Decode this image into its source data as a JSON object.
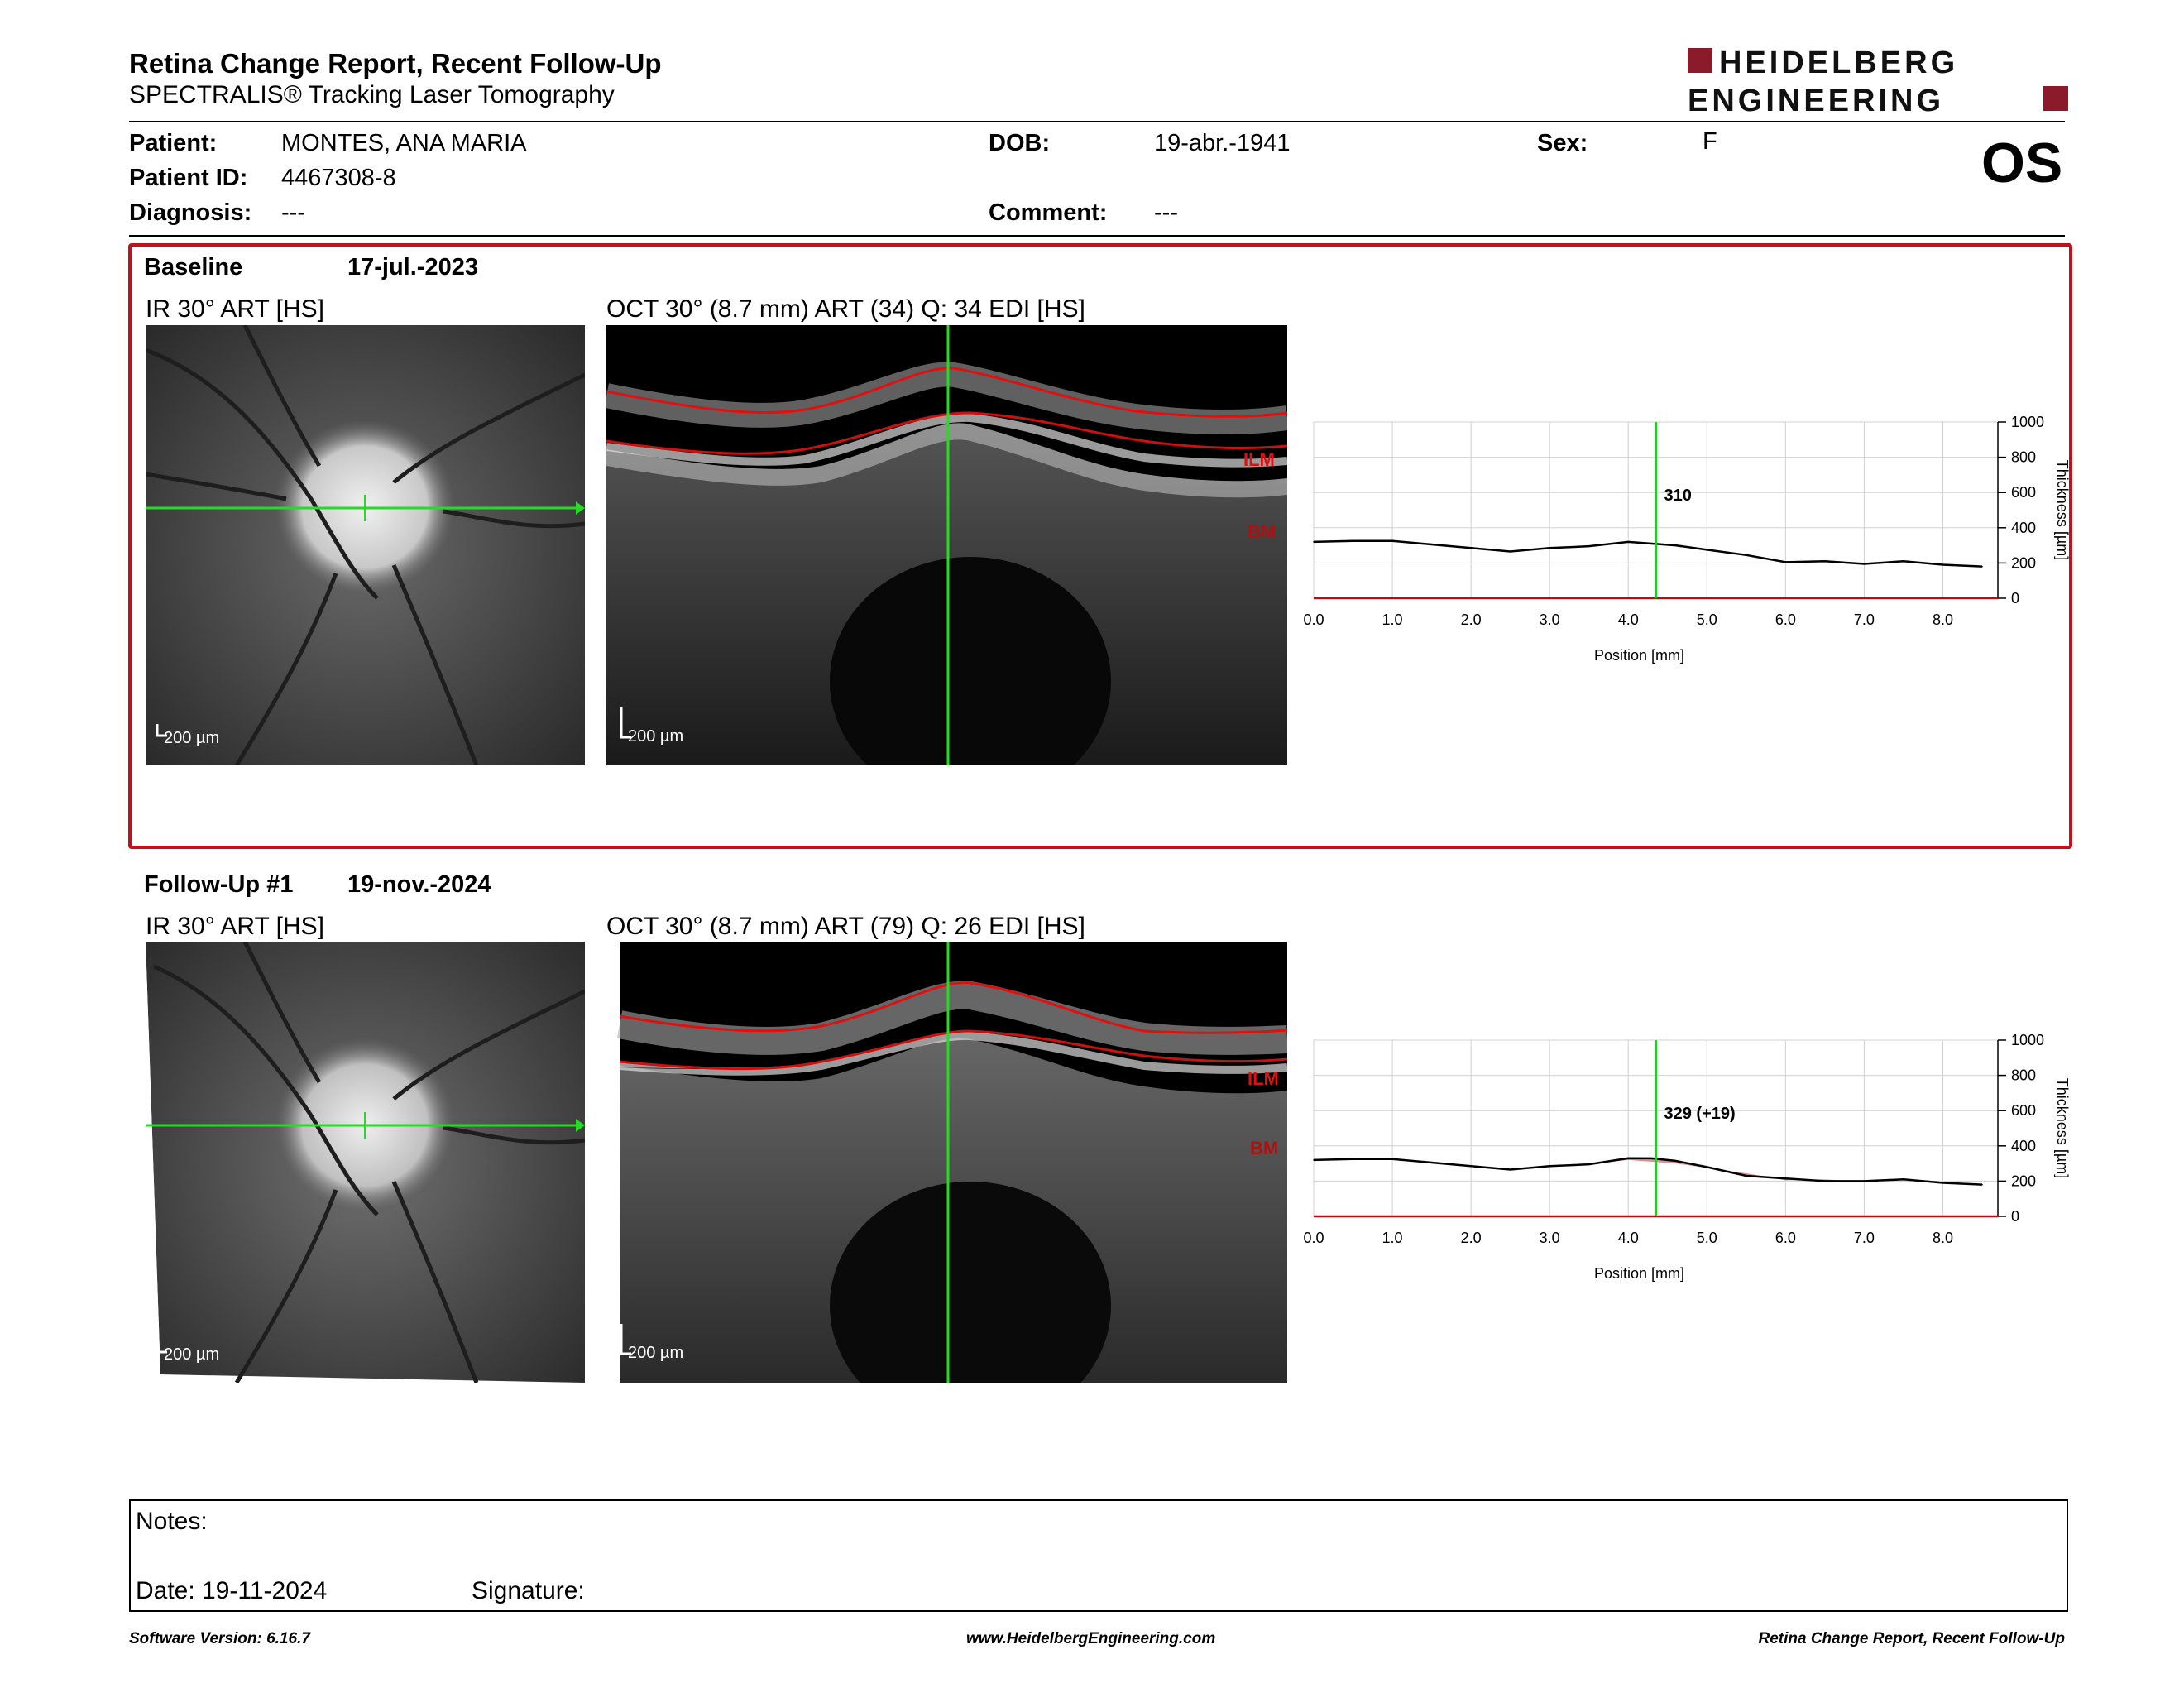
{
  "header": {
    "title": "Retina Change Report, Recent Follow-Up",
    "subtitle": "SPECTRALIS® Tracking Laser Tomography",
    "logo_line1": "HEIDELBERG",
    "logo_line2": "ENGINEERING",
    "eye": "OS"
  },
  "patient": {
    "patient_label": "Patient:",
    "patient_value": "MONTES, ANA MARIA",
    "id_label": "Patient ID:",
    "id_value": "4467308-8",
    "diagnosis_label": "Diagnosis:",
    "diagnosis_value": "---",
    "dob_label": "DOB:",
    "dob_value": "19-abr.-1941",
    "comment_label": "Comment:",
    "comment_value": "---",
    "sex_label": "Sex:",
    "sex_value": "F"
  },
  "baseline": {
    "label": "Baseline",
    "date": "17-jul.-2023",
    "ir_caption": "IR 30° ART [HS]",
    "oct_caption": "OCT 30° (8.7 mm) ART (34) Q: 34 EDI [HS]",
    "ir_scale": "200 µm",
    "oct_scale": "200 µm",
    "ilm_label": "ILM",
    "bm_label": "BM"
  },
  "followup": {
    "label": "Follow-Up #1",
    "date": "19-nov.-2024",
    "ir_caption": "IR 30° ART [HS]",
    "oct_caption": "OCT 30° (8.7 mm) ART (79) Q: 26 EDI [HS]",
    "ir_scale": "200 µm",
    "oct_scale": "200 µm",
    "ilm_label": "ILM",
    "bm_label": "BM"
  },
  "chart_data": [
    {
      "type": "line",
      "xlabel": "Position [mm]",
      "ylabel": "Thickness [µm]",
      "xlim": [
        0,
        8.7
      ],
      "ylim": [
        0,
        1000
      ],
      "x_ticks": [
        "0.0",
        "1.0",
        "2.0",
        "3.0",
        "4.0",
        "5.0",
        "6.0",
        "7.0",
        "8.0"
      ],
      "y_ticks": [
        "0",
        "200",
        "400",
        "600",
        "800",
        "1000"
      ],
      "marker_x": 4.35,
      "marker_label": "310",
      "line_color": "#000000",
      "marker_color": "#22cc22",
      "x": [
        0.0,
        0.5,
        1.0,
        1.5,
        2.0,
        2.5,
        3.0,
        3.5,
        4.0,
        4.3,
        4.6,
        5.0,
        5.5,
        6.0,
        6.5,
        7.0,
        7.5,
        8.0,
        8.5
      ],
      "values": [
        320,
        325,
        325,
        305,
        285,
        265,
        285,
        295,
        320,
        310,
        300,
        275,
        245,
        205,
        210,
        195,
        210,
        190,
        180
      ]
    },
    {
      "type": "line",
      "xlabel": "Position [mm]",
      "ylabel": "Thickness [µm]",
      "xlim": [
        0,
        8.7
      ],
      "ylim": [
        0,
        1000
      ],
      "x_ticks": [
        "0.0",
        "1.0",
        "2.0",
        "3.0",
        "4.0",
        "5.0",
        "6.0",
        "7.0",
        "8.0"
      ],
      "y_ticks": [
        "0",
        "200",
        "400",
        "600",
        "800",
        "1000"
      ],
      "marker_x": 4.35,
      "marker_label": "329 (+19)",
      "line_color": "#000000",
      "marker_color": "#22cc22",
      "diff_color": "#d46a6a",
      "x": [
        0.0,
        0.5,
        1.0,
        1.5,
        2.0,
        2.5,
        3.0,
        3.5,
        4.0,
        4.3,
        4.6,
        5.0,
        5.5,
        6.0,
        6.5,
        7.0,
        7.5,
        8.0,
        8.5
      ],
      "values": [
        320,
        325,
        325,
        305,
        285,
        265,
        285,
        295,
        330,
        329,
        315,
        280,
        230,
        215,
        200,
        200,
        210,
        190,
        180
      ],
      "baseline_values": [
        320,
        325,
        325,
        305,
        285,
        265,
        285,
        295,
        320,
        310,
        300,
        275,
        245,
        205,
        210,
        195,
        210,
        190,
        180
      ]
    }
  ],
  "notes": {
    "notes_label": "Notes:",
    "date_label": "Date: 19-11-2024",
    "signature_label": "Signature:"
  },
  "footer": {
    "left": "Software Version: 6.16.7",
    "center": "www.HeidelbergEngineering.com",
    "right": "Retina Change Report, Recent Follow-Up"
  }
}
